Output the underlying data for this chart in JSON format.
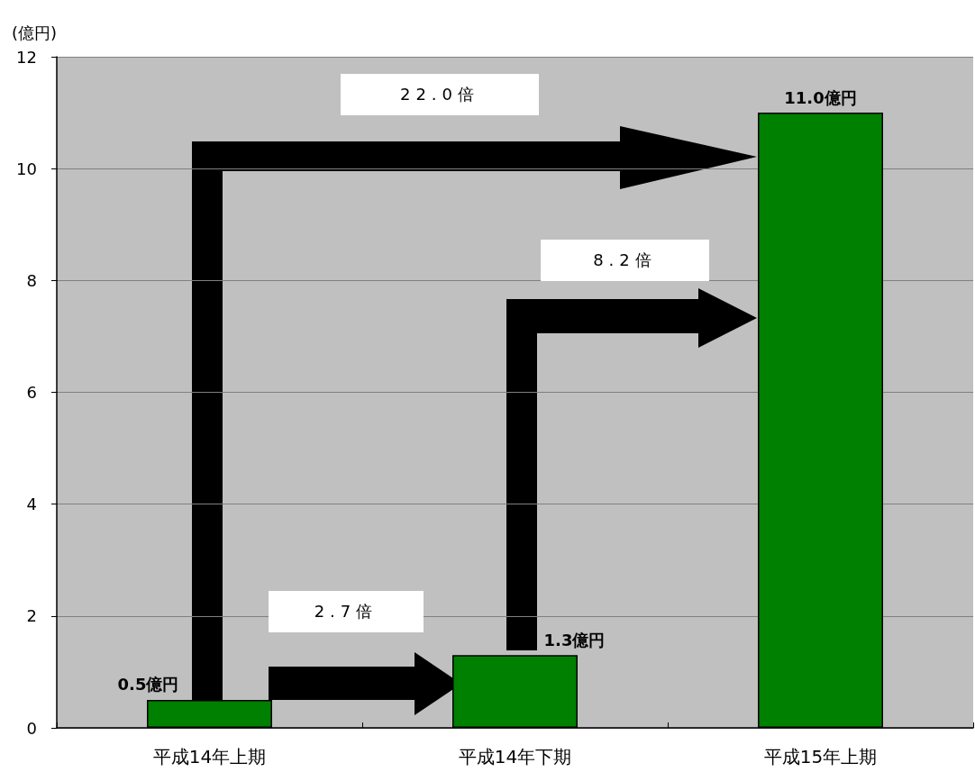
{
  "chart_data": {
    "type": "bar",
    "ylabel": "(億円)",
    "categories": [
      "平成14年上期",
      "平成14年下期",
      "平成15年上期"
    ],
    "values": [
      0.5,
      1.3,
      11.0
    ],
    "value_labels": [
      "0.5億円",
      "1.3億円",
      "11.0億円"
    ],
    "color": "#008000",
    "ylim": [
      0,
      12
    ],
    "yticks": [
      0,
      2,
      4,
      6,
      8,
      10,
      12
    ],
    "grid": "y",
    "annotations": [
      "22.0倍",
      "8.2倍",
      "2.7倍"
    ]
  }
}
